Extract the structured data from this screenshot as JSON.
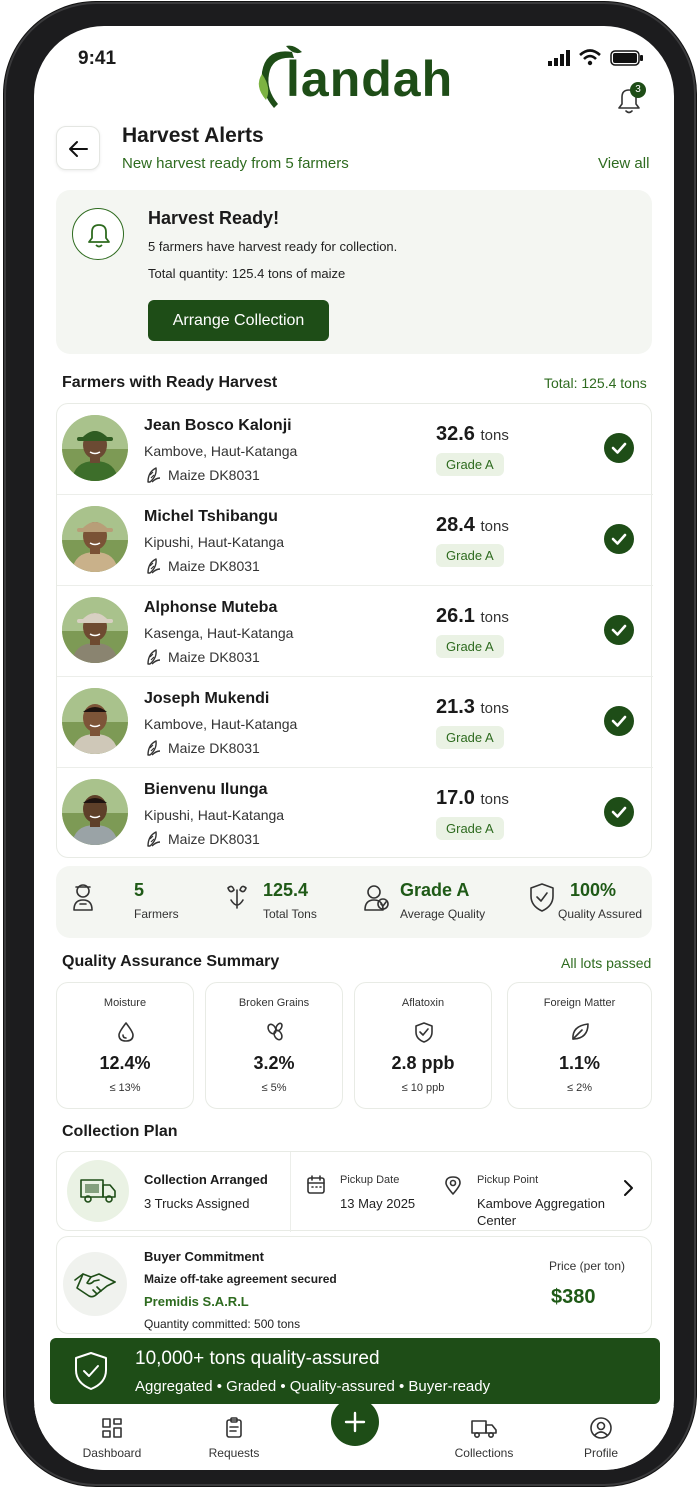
{
  "status_bar": {
    "time": "9:41"
  },
  "brand": {
    "logo_text": "landah"
  },
  "notifications": {
    "count": "3"
  },
  "header": {
    "title": "Harvest Alerts",
    "subtitle": "New harvest ready from 5 farmers",
    "view_all": "View all"
  },
  "alert": {
    "title": "Harvest Ready!",
    "line1": "5 farmers have harvest ready for collection.",
    "line2": "Total quantity: 125.4 tons of maize",
    "button": "Arrange Collection"
  },
  "farmers_section": {
    "title": "Farmers with Ready Harvest",
    "total": "Total: 125.4 tons"
  },
  "farmers": [
    {
      "name": "Jean Bosco Kalonji",
      "location": "Kambove, Haut-Katanga",
      "variety": "Maize DK8031",
      "qty": "32.6",
      "unit": "tons",
      "grade": "Grade A"
    },
    {
      "name": "Michel Tshibangu",
      "location": "Kipushi, Haut-Katanga",
      "variety": "Maize DK8031",
      "qty": "28.4",
      "unit": "tons",
      "grade": "Grade A"
    },
    {
      "name": "Alphonse Muteba",
      "location": "Kasenga, Haut-Katanga",
      "variety": "Maize DK8031",
      "qty": "26.1",
      "unit": "tons",
      "grade": "Grade A"
    },
    {
      "name": "Joseph Mukendi",
      "location": "Kambove, Haut-Katanga",
      "variety": "Maize DK8031",
      "qty": "21.3",
      "unit": "tons",
      "grade": "Grade A"
    },
    {
      "name": "Bienvenu Ilunga",
      "location": "Kipushi, Haut-Katanga",
      "variety": "Maize DK8031",
      "qty": "17.0",
      "unit": "tons",
      "grade": "Grade A"
    }
  ],
  "stats": [
    {
      "value": "5",
      "label": "Farmers",
      "icon": "farmer-icon"
    },
    {
      "value": "125.4",
      "label": "Total Tons",
      "icon": "scale-icon"
    },
    {
      "value": "Grade A",
      "label": "Average Quality",
      "icon": "quality-badge-icon"
    },
    {
      "value": "100%",
      "label": "Quality Assured",
      "icon": "shield-check-icon"
    }
  ],
  "qa_section": {
    "title": "Quality Assurance Summary",
    "status": "All lots passed"
  },
  "qa": [
    {
      "title": "Moisture",
      "value": "12.4%",
      "limit": "≤ 13%",
      "icon": "droplet-icon"
    },
    {
      "title": "Broken Grains",
      "value": "3.2%",
      "limit": "≤ 5%",
      "icon": "grains-icon"
    },
    {
      "title": "Aflatoxin",
      "value": "2.8 ppb",
      "limit": "≤ 10 ppb",
      "icon": "shield-check-icon"
    },
    {
      "title": "Foreign Matter",
      "value": "1.1%",
      "limit": "≤ 2%",
      "icon": "leaf-icon"
    }
  ],
  "collection": {
    "section_title": "Collection Plan",
    "arranged_title": "Collection Arranged",
    "trucks": "3 Trucks Assigned",
    "pickup_date_label": "Pickup Date",
    "pickup_date": "13 May 2025",
    "pickup_point_label": "Pickup Point",
    "pickup_point_line1": "Kambove Aggregation",
    "pickup_point_line2": "Center"
  },
  "buyer": {
    "title": "Buyer Commitment",
    "agreement": "Maize off-take agreement secured",
    "name": "Premidis S.A.R.L",
    "quantity": "Quantity committed: 500 tons",
    "price_label": "Price (per ton)",
    "price": "$380"
  },
  "banner": {
    "title": "10,000+ tons quality-assured",
    "subtitle": "Aggregated • Graded • Quality-assured • Buyer-ready"
  },
  "nav": {
    "dashboard": "Dashboard",
    "requests": "Requests",
    "collections": "Collections",
    "profile": "Profile"
  },
  "colors": {
    "primary": "#1e4d17",
    "accent": "#2e6b1f",
    "card_bg": "#f4f6f2"
  }
}
